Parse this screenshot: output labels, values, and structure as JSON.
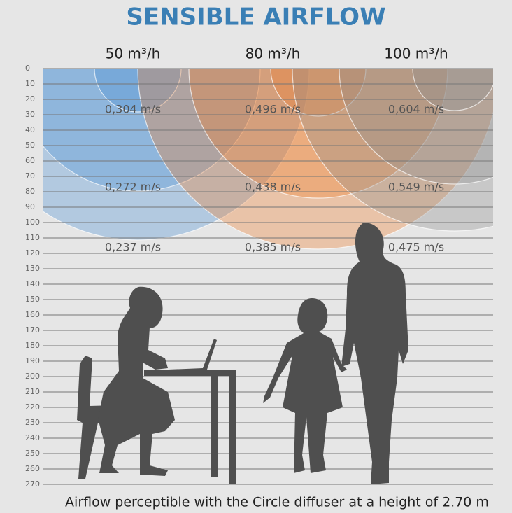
{
  "title": "SENSIBLE AIRFLOW",
  "columns": [
    {
      "label": "50 m³/h",
      "speeds": [
        "0,304 m/s",
        "0,272 m/s",
        "0,237 m/s"
      ]
    },
    {
      "label": "80 m³/h",
      "speeds": [
        "0,496 m/s",
        "0,438 m/s",
        "0,385 m/s"
      ]
    },
    {
      "label": "100 m³/h",
      "speeds": [
        "0,604 m/s",
        "0,549 m/s",
        "0,475 m/s"
      ]
    }
  ],
  "scale": [
    0,
    10,
    20,
    30,
    40,
    50,
    60,
    70,
    80,
    90,
    100,
    110,
    120,
    130,
    140,
    150,
    160,
    170,
    180,
    190,
    200,
    210,
    220,
    230,
    240,
    250,
    260,
    270
  ],
  "caption": "Airflow perceptible with the Circle diffuser at a height of 2.70 m"
}
